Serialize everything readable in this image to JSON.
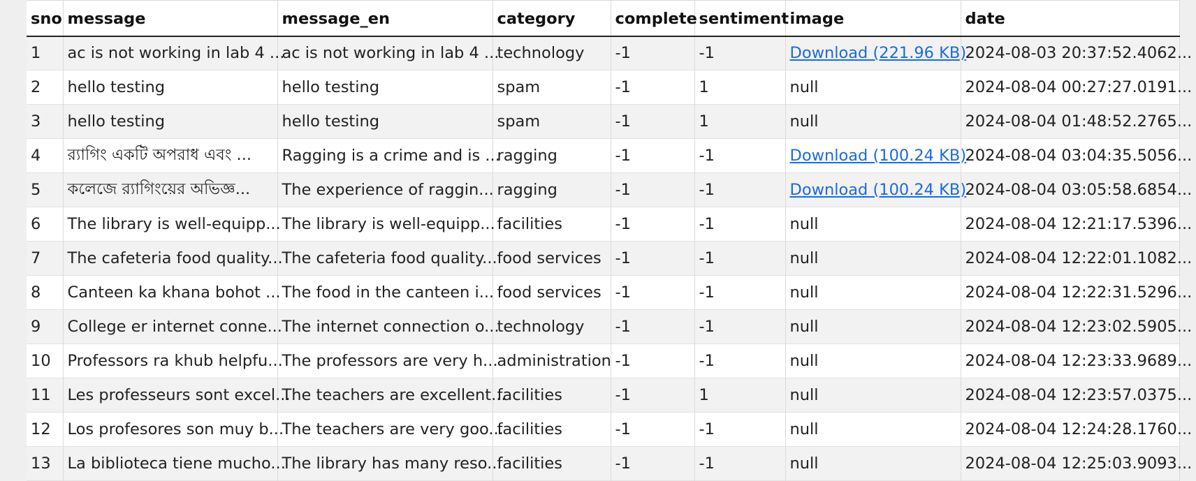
{
  "table": {
    "columns": [
      "sno",
      "message",
      "message_en",
      "category",
      "complete",
      "sentiment",
      "image",
      "date"
    ],
    "rows": [
      {
        "sno": "1",
        "message": "ac is not working in lab 4 ...",
        "message_en": "ac is not working in lab 4 ...",
        "category": "technology",
        "complete": "-1",
        "sentiment": "-1",
        "image": "Download (221.96 KB)",
        "image_is_link": true,
        "date": "2024-08-03 20:37:52.4062..."
      },
      {
        "sno": "2",
        "message": "hello testing",
        "message_en": "hello testing",
        "category": "spam",
        "complete": "-1",
        "sentiment": "1",
        "image": "null",
        "image_is_link": false,
        "date": "2024-08-04 00:27:27.0191..."
      },
      {
        "sno": "3",
        "message": "hello testing",
        "message_en": "hello testing",
        "category": "spam",
        "complete": "-1",
        "sentiment": "1",
        "image": "null",
        "image_is_link": false,
        "date": "2024-08-04 01:48:52.2765..."
      },
      {
        "sno": "4",
        "message": "র‍্যাগিং একটি অপরাধ এবং ...",
        "message_en": "Ragging is a crime and is ...",
        "category": "ragging",
        "complete": "-1",
        "sentiment": "-1",
        "image": "Download (100.24 KB)",
        "image_is_link": true,
        "date": "2024-08-04 03:04:35.5056..."
      },
      {
        "sno": "5",
        "message": "কলেজে র‍্যাগিংয়ের অভিজ্ঞ...",
        "message_en": "The experience of raggin...",
        "category": "ragging",
        "complete": "-1",
        "sentiment": "-1",
        "image": "Download (100.24 KB)",
        "image_is_link": true,
        "date": "2024-08-04 03:05:58.6854..."
      },
      {
        "sno": "6",
        "message": "The library is well-equipp...",
        "message_en": "The library is well-equipp...",
        "category": "facilities",
        "complete": "-1",
        "sentiment": "-1",
        "image": "null",
        "image_is_link": false,
        "date": "2024-08-04 12:21:17.5396..."
      },
      {
        "sno": "7",
        "message": "The cafeteria food quality...",
        "message_en": "The cafeteria food quality...",
        "category": "food services",
        "complete": "-1",
        "sentiment": "-1",
        "image": "null",
        "image_is_link": false,
        "date": "2024-08-04 12:22:01.1082..."
      },
      {
        "sno": "8",
        "message": "Canteen ka khana bohot ...",
        "message_en": "The food in the canteen i...",
        "category": "food services",
        "complete": "-1",
        "sentiment": "-1",
        "image": "null",
        "image_is_link": false,
        "date": "2024-08-04 12:22:31.5296..."
      },
      {
        "sno": "9",
        "message": "College er internet conne...",
        "message_en": "The internet connection o...",
        "category": "technology",
        "complete": "-1",
        "sentiment": "-1",
        "image": "null",
        "image_is_link": false,
        "date": "2024-08-04 12:23:02.5905..."
      },
      {
        "sno": "10",
        "message": "Professors ra khub helpfu...",
        "message_en": "The professors are very h...",
        "category": "administration",
        "complete": "-1",
        "sentiment": "-1",
        "image": "null",
        "image_is_link": false,
        "date": "2024-08-04 12:23:33.9689..."
      },
      {
        "sno": "11",
        "message": "Les professeurs sont excel...",
        "message_en": "The teachers are excellent...",
        "category": "facilities",
        "complete": "-1",
        "sentiment": "1",
        "image": "null",
        "image_is_link": false,
        "date": "2024-08-04 12:23:57.0375..."
      },
      {
        "sno": "12",
        "message": "Los profesores son muy b...",
        "message_en": "The teachers are very goo...",
        "category": "facilities",
        "complete": "-1",
        "sentiment": "-1",
        "image": "null",
        "image_is_link": false,
        "date": "2024-08-04 12:24:28.1760..."
      },
      {
        "sno": "13",
        "message": "La biblioteca tiene mucho...",
        "message_en": "The library has many reso...",
        "category": "facilities",
        "complete": "-1",
        "sentiment": "-1",
        "image": "null",
        "image_is_link": false,
        "date": "2024-08-04 12:25:03.9093..."
      }
    ]
  },
  "colors": {
    "link": "#1a6be0",
    "header_rule": "#222222",
    "row_alt": "#f2f2f2"
  }
}
